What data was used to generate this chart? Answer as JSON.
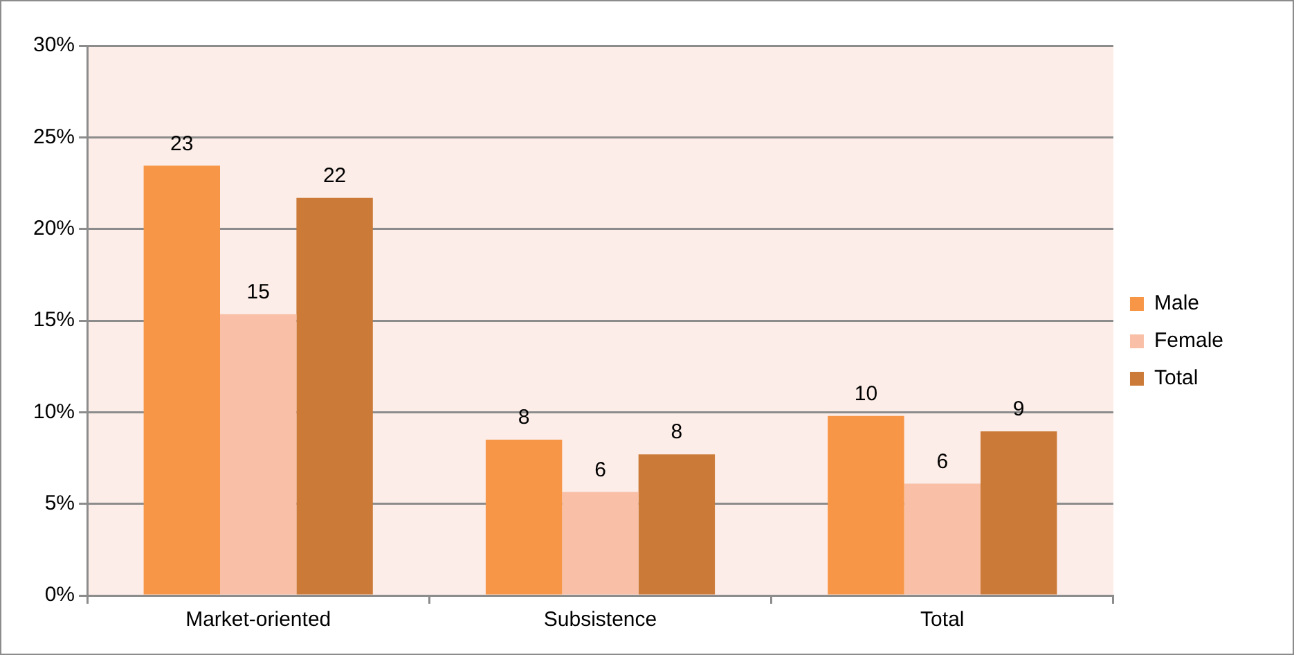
{
  "chart_data": {
    "type": "bar",
    "categories": [
      "Market-oriented",
      "Subsistence",
      "Total"
    ],
    "series": [
      {
        "name": "Male",
        "color": "#f79646",
        "values": [
          23.45,
          8.5,
          9.8
        ],
        "value_labels": [
          "23",
          "8",
          "10"
        ]
      },
      {
        "name": "Female",
        "color": "#f9c0a7",
        "values": [
          15.35,
          5.65,
          6.1
        ],
        "value_labels": [
          "15",
          "6",
          "6"
        ]
      },
      {
        "name": "Total",
        "color": "#cb7a37",
        "values": [
          21.7,
          7.7,
          8.95
        ],
        "value_labels": [
          "22",
          "8",
          "9"
        ]
      }
    ],
    "ylim": [
      0,
      30
    ],
    "yticks": [
      {
        "value": 0,
        "label": "0%"
      },
      {
        "value": 5,
        "label": "5%"
      },
      {
        "value": 10,
        "label": "10%"
      },
      {
        "value": 15,
        "label": "15%"
      },
      {
        "value": 20,
        "label": "20%"
      },
      {
        "value": 25,
        "label": "25%"
      },
      {
        "value": 30,
        "label": "30%"
      }
    ],
    "grid": "y",
    "legend": "right"
  }
}
